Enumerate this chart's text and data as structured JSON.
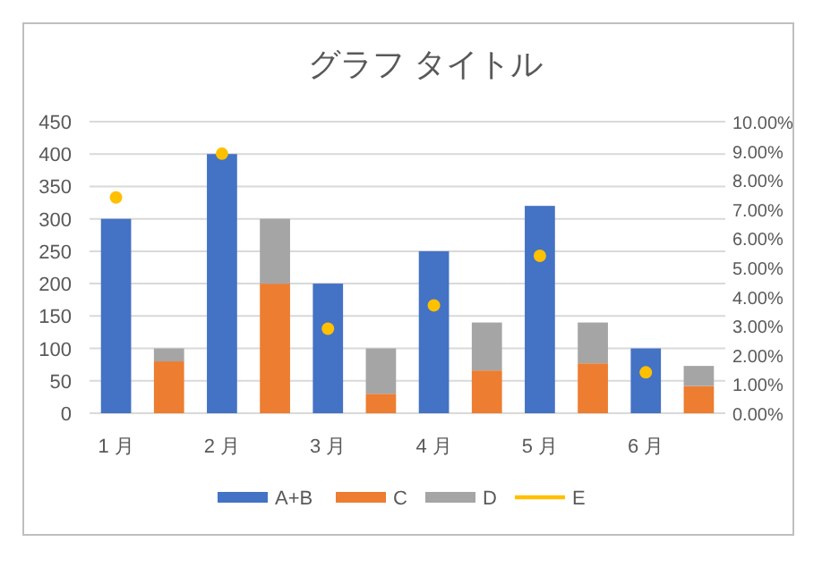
{
  "chart_data": {
    "type": "bar",
    "title": "グラフ タイトル",
    "stacked": true,
    "categories": [
      "1 月",
      null,
      "2 月",
      null,
      "3 月",
      null,
      "4 月",
      null,
      "5 月",
      null,
      "6 月",
      null
    ],
    "series": [
      {
        "name": "A+B",
        "color": "#4472c4",
        "values": [
          300,
          null,
          400,
          null,
          200,
          null,
          250,
          null,
          320,
          null,
          100,
          null
        ]
      },
      {
        "name": "C",
        "color": "#ed7d31",
        "values": [
          null,
          80,
          null,
          200,
          null,
          30,
          null,
          66,
          null,
          77,
          null,
          42
        ]
      },
      {
        "name": "D",
        "color": "#a5a5a5",
        "values": [
          null,
          20,
          null,
          100,
          null,
          70,
          null,
          74,
          null,
          63,
          null,
          31
        ]
      },
      {
        "name": "E",
        "color": "#ffc000",
        "type": "scatter",
        "axis": "y2",
        "marker": "circle",
        "values": [
          7.4,
          null,
          8.9,
          null,
          2.9,
          null,
          3.7,
          null,
          5.4,
          null,
          1.4,
          null
        ]
      }
    ],
    "ylim": [
      0,
      450
    ],
    "yticks": [
      0,
      50,
      100,
      150,
      200,
      250,
      300,
      350,
      400,
      450
    ],
    "y2lim": [
      0,
      10
    ],
    "y2ticks": [
      {
        "value": 0,
        "label": "0.00%"
      },
      {
        "value": 1,
        "label": "1.00%"
      },
      {
        "value": 2,
        "label": "2.00%"
      },
      {
        "value": 3,
        "label": "3.00%"
      },
      {
        "value": 4,
        "label": "4.00%"
      },
      {
        "value": 5,
        "label": "5.00%"
      },
      {
        "value": 6,
        "label": "6.00%"
      },
      {
        "value": 7,
        "label": "7.00%"
      },
      {
        "value": 8,
        "label": "8.00%"
      },
      {
        "value": 9,
        "label": "9.00%"
      },
      {
        "value": 10,
        "label": "10.00%"
      }
    ],
    "grid": "y",
    "legend": "bottom"
  }
}
